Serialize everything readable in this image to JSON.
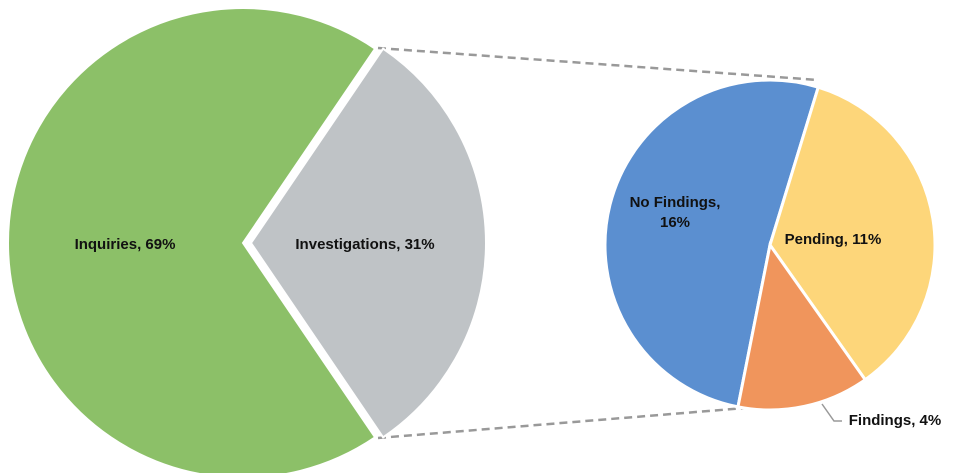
{
  "chart_data": {
    "type": "pie_of_pie",
    "values": [
      69,
      31
    ],
    "value_labels": [
      "Inquiries, 69%",
      "Investigations, 31%"
    ],
    "colors": [
      "#8cc068",
      "#bfc3c6"
    ],
    "secondary": {
      "values": [
        16,
        11,
        4
      ],
      "value_labels": [
        "No Findings, 16%",
        "Pending, 11%",
        "Findings, 4%"
      ],
      "colors": [
        "#5b8fd0",
        "#fdd67a",
        "#f0955c"
      ]
    }
  }
}
